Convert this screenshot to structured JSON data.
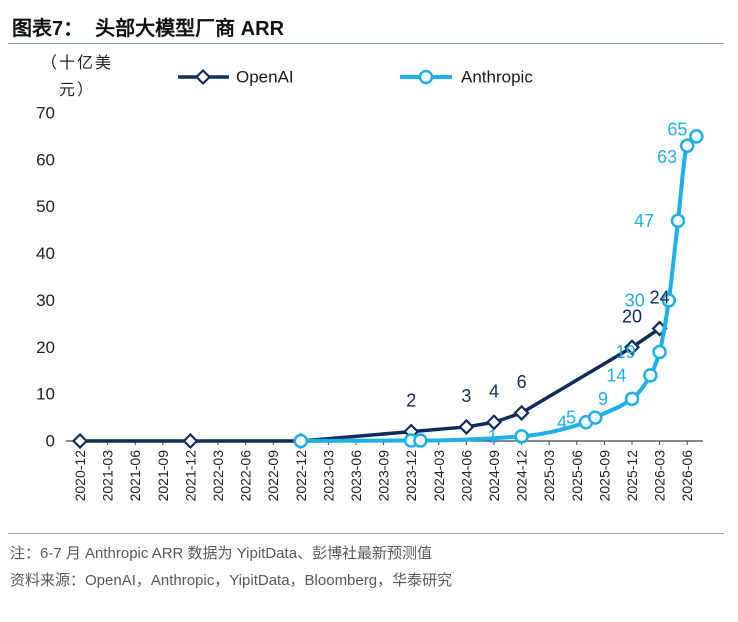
{
  "header": {
    "figure_label": "图表7："
  },
  "chart_data": {
    "type": "line",
    "title": "头部大模型厂商 ARR",
    "ylabel": "（十亿美元）",
    "xlabel": "",
    "x_type": "date",
    "xticks": [
      "2020-12",
      "2021-03",
      "2021-06",
      "2021-09",
      "2021-12",
      "2022-03",
      "2022-06",
      "2022-09",
      "2022-12",
      "2023-03",
      "2023-06",
      "2023-09",
      "2023-12",
      "2024-03",
      "2024-06",
      "2024-09",
      "2024-12",
      "2025-03",
      "2025-06",
      "2025-09",
      "2025-12",
      "2026-03",
      "2026-06"
    ],
    "ylim": [
      0,
      70
    ],
    "yticks": [
      0,
      10,
      20,
      30,
      40,
      50,
      60,
      70
    ],
    "grid": false,
    "legend": "top",
    "series": [
      {
        "name": "OpenAI",
        "color": "#0f2c5c",
        "marker": "diamond",
        "smooth": false,
        "points": [
          {
            "x": "2020-12",
            "y": 0
          },
          {
            "x": "2021-12",
            "y": 0
          },
          {
            "x": "2022-12",
            "y": 0
          },
          {
            "x": "2023-12",
            "y": 2,
            "label": "2"
          },
          {
            "x": "2024-06",
            "y": 3,
            "label": "3"
          },
          {
            "x": "2024-09",
            "y": 4,
            "label": "4"
          },
          {
            "x": "2024-12",
            "y": 6,
            "label": "6"
          },
          {
            "x": "2025-12",
            "y": 20,
            "label": "20"
          },
          {
            "x": "2026-03",
            "y": 24,
            "label": "24"
          }
        ]
      },
      {
        "name": "Anthropic",
        "color": "#1cb0ea",
        "marker": "circle",
        "smooth": true,
        "points": [
          {
            "x": "2022-12",
            "y": 0
          },
          {
            "x": "2023-12",
            "y": 0.1
          },
          {
            "x": "2024-01",
            "y": 0.1
          },
          {
            "x": "2024-12",
            "y": 1,
            "label": "1"
          },
          {
            "x": "2025-07",
            "y": 4,
            "label": "4"
          },
          {
            "x": "2025-08",
            "y": 5,
            "label": "5"
          },
          {
            "x": "2025-12",
            "y": 9,
            "label": "9"
          },
          {
            "x": "2026-02",
            "y": 14,
            "label": "14"
          },
          {
            "x": "2026-03",
            "y": 19,
            "label": "19"
          },
          {
            "x": "2026-04",
            "y": 30,
            "label": "30"
          },
          {
            "x": "2026-05",
            "y": 47,
            "label": "47"
          },
          {
            "x": "2026-06",
            "y": 63,
            "label": "63"
          },
          {
            "x": "2026-07",
            "y": 65,
            "label": "65"
          }
        ]
      }
    ]
  },
  "notes": {
    "note": "注：6-7 月 Anthropic ARR 数据为 YipitData、彭博社最新预测值",
    "source": "资料来源：OpenAI，Anthropic，YipitData，Bloomberg，华泰研究"
  }
}
